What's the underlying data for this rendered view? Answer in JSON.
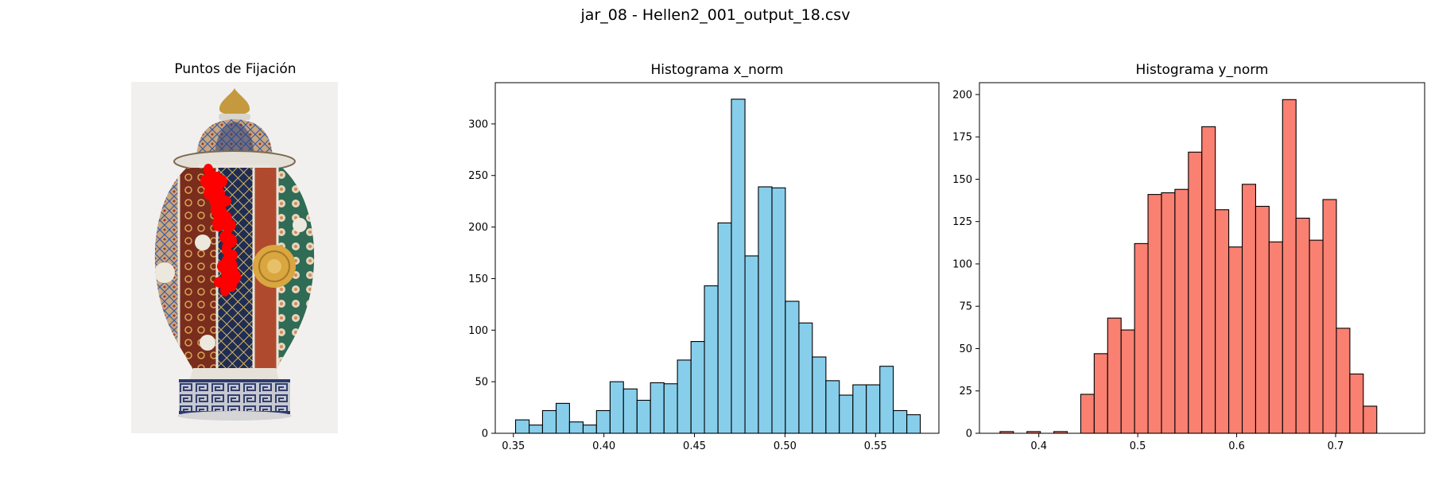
{
  "figure": {
    "suptitle": "jar_08 - Hellen2_001_output_18.csv"
  },
  "image_panel": {
    "title": "Puntos de Fijación",
    "icon": "porcelain-jar-image",
    "fixation_color": "#ff0000"
  },
  "chart_data": [
    {
      "type": "bar",
      "title": "Histograma x_norm",
      "xlabel": "",
      "ylabel": "",
      "color": "#87ceeb",
      "edgecolor": "#000000",
      "bin_edges": [
        0.3512,
        0.3587,
        0.3661,
        0.3736,
        0.381,
        0.3885,
        0.3959,
        0.4034,
        0.4108,
        0.4183,
        0.4257,
        0.4332,
        0.4406,
        0.4481,
        0.4555,
        0.463,
        0.4704,
        0.4779,
        0.4853,
        0.4928,
        0.5002,
        0.5077,
        0.5151,
        0.5226,
        0.53,
        0.5375,
        0.5449,
        0.5524,
        0.5598,
        0.5673,
        0.5747
      ],
      "values": [
        13,
        8,
        22,
        29,
        11,
        8,
        22,
        50,
        43,
        32,
        49,
        48,
        71,
        89,
        143,
        204,
        324,
        172,
        239,
        238,
        128,
        107,
        74,
        51,
        37,
        47,
        47,
        65,
        22,
        18
      ],
      "xlim": [
        0.34,
        0.585
      ],
      "ylim": [
        0,
        340
      ],
      "xticks": [
        "0.35",
        "0.40",
        "0.45",
        "0.50",
        "0.55"
      ],
      "yticks": [
        "0",
        "50",
        "100",
        "150",
        "200",
        "250",
        "300"
      ],
      "grid": false
    },
    {
      "type": "bar",
      "title": "Histograma y_norm",
      "xlabel": "",
      "ylabel": "",
      "color": "#fa8072",
      "edgecolor": "#000000",
      "bin_edges": [
        0.3608,
        0.3744,
        0.388,
        0.4016,
        0.4152,
        0.4288,
        0.4424,
        0.456,
        0.4696,
        0.4832,
        0.4968,
        0.5104,
        0.524,
        0.5376,
        0.5512,
        0.5648,
        0.5784,
        0.592,
        0.6056,
        0.6192,
        0.6328,
        0.6464,
        0.66,
        0.6736,
        0.6872,
        0.7008,
        0.7144,
        0.728,
        0.7416,
        0.7552,
        0.7688
      ],
      "values": [
        1,
        0,
        1,
        0,
        1,
        0,
        23,
        47,
        68,
        61,
        112,
        141,
        142,
        144,
        166,
        181,
        132,
        110,
        147,
        134,
        113,
        197,
        127,
        114,
        138,
        62,
        35,
        16,
        0,
        0
      ],
      "xlim": [
        0.34,
        0.79
      ],
      "ylim": [
        0,
        207
      ],
      "xticks": [
        "0.4",
        "0.5",
        "0.6",
        "0.7"
      ],
      "yticks": [
        "0",
        "25",
        "50",
        "75",
        "100",
        "125",
        "150",
        "175",
        "200"
      ],
      "grid": false
    }
  ]
}
